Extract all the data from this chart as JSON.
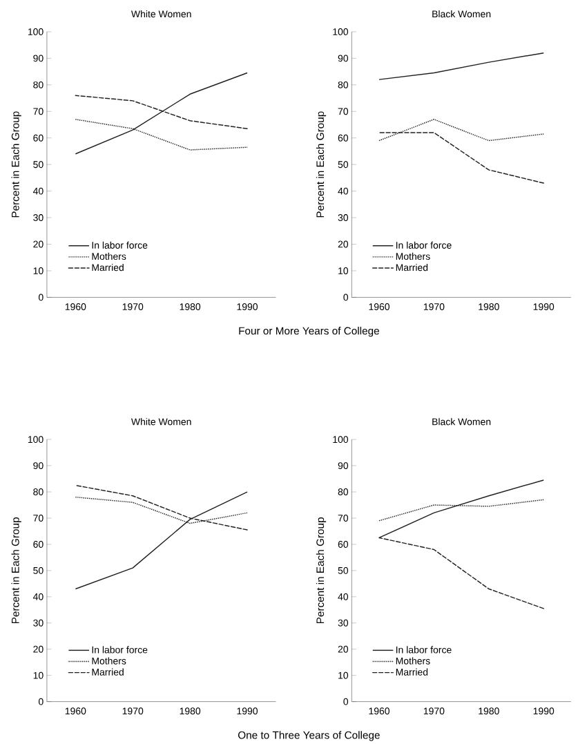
{
  "chart_data": [
    {
      "type": "line",
      "title": "White Women",
      "ylabel": "Percent in Each Group",
      "categories": [
        "1960",
        "1970",
        "1980",
        "1990"
      ],
      "ylim": [
        0,
        100
      ],
      "yticks": [
        0,
        10,
        20,
        30,
        40,
        50,
        60,
        70,
        80,
        90,
        100
      ],
      "legend": "bottom left",
      "annotations": [
        "Four or More Years of College"
      ],
      "series": [
        {
          "name": "In labor force",
          "color": "#231f20",
          "line_style": "solid",
          "values": [
            54,
            63,
            76.5,
            84.5
          ]
        },
        {
          "name": "Mothers",
          "color": "#231f20",
          "line_style": "dotted",
          "values": [
            67,
            63.5,
            55.5,
            56.5
          ]
        },
        {
          "name": "Married",
          "color": "#231f20",
          "line_style": "dashed",
          "values": [
            76,
            74,
            66.5,
            63.5
          ]
        }
      ]
    },
    {
      "type": "line",
      "title": "Black Women",
      "ylabel": "Percent in Each Group",
      "categories": [
        "1960",
        "1970",
        "1980",
        "1990"
      ],
      "ylim": [
        0,
        100
      ],
      "yticks": [
        0,
        10,
        20,
        30,
        40,
        50,
        60,
        70,
        80,
        90,
        100
      ],
      "legend": "bottom left",
      "series": [
        {
          "name": "In labor force",
          "color": "#231f20",
          "line_style": "solid",
          "values": [
            82,
            84.5,
            88.5,
            92
          ]
        },
        {
          "name": "Mothers",
          "color": "#231f20",
          "line_style": "dotted",
          "values": [
            59,
            67,
            59,
            61.5
          ]
        },
        {
          "name": "Married",
          "color": "#231f20",
          "line_style": "dashed",
          "values": [
            62,
            62,
            48,
            43
          ]
        }
      ]
    },
    {
      "type": "line",
      "title": "White Women",
      "ylabel": "Percent in Each Group",
      "categories": [
        "1960",
        "1970",
        "1980",
        "1990"
      ],
      "ylim": [
        0,
        100
      ],
      "yticks": [
        0,
        10,
        20,
        30,
        40,
        50,
        60,
        70,
        80,
        90,
        100
      ],
      "legend": "bottom left",
      "annotations": [
        "One to Three Years of College"
      ],
      "series": [
        {
          "name": "In labor force",
          "color": "#231f20",
          "line_style": "solid",
          "values": [
            43,
            51,
            69.5,
            80
          ]
        },
        {
          "name": "Mothers",
          "color": "#231f20",
          "line_style": "dotted",
          "values": [
            78,
            76,
            68,
            72
          ]
        },
        {
          "name": "Married",
          "color": "#231f20",
          "line_style": "dashed",
          "values": [
            82.5,
            78.5,
            70,
            65.5
          ]
        }
      ]
    },
    {
      "type": "line",
      "title": "Black Women",
      "ylabel": "Percent in Each Group",
      "categories": [
        "1960",
        "1970",
        "1980",
        "1990"
      ],
      "ylim": [
        0,
        100
      ],
      "yticks": [
        0,
        10,
        20,
        30,
        40,
        50,
        60,
        70,
        80,
        90,
        100
      ],
      "legend": "bottom left",
      "series": [
        {
          "name": "In labor force",
          "color": "#231f20",
          "line_style": "solid",
          "values": [
            62.5,
            72,
            78.5,
            84.5
          ]
        },
        {
          "name": "Mothers",
          "color": "#231f20",
          "line_style": "dotted",
          "values": [
            69,
            75,
            74.5,
            77
          ]
        },
        {
          "name": "Married",
          "color": "#231f20",
          "line_style": "dashed",
          "values": [
            62.5,
            58,
            43,
            35.5
          ]
        }
      ]
    }
  ]
}
